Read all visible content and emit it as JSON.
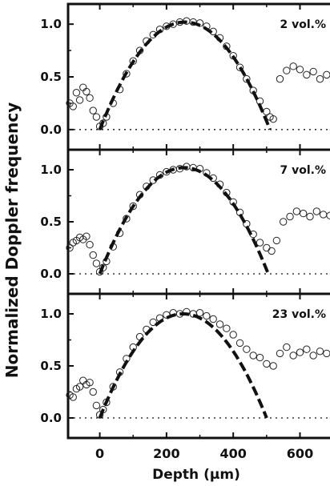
{
  "chart_data": {
    "type": "scatter",
    "xlabel": "Depth (μm)",
    "ylabel": "Normalized Doppler frequency",
    "xlim": [
      -95,
      690
    ],
    "x_ticks": [
      "0",
      "200",
      "400",
      "600"
    ],
    "x_tick_values": [
      0,
      200,
      400,
      600
    ],
    "ylim": [
      -0.1,
      1.1
    ],
    "y_ticks": [
      "0.0",
      "0.5",
      "1.0"
    ],
    "y_tick_values": [
      0.0,
      0.5,
      1.0
    ],
    "reference_line": {
      "y": 0.0,
      "style": "dotted"
    },
    "series_style": {
      "data": "open circles",
      "fit": "dashed line"
    },
    "panels": [
      {
        "label": "2 vol.%",
        "fit": {
          "x0": 0,
          "x1": 510,
          "peak": 1.02
        },
        "data": [
          [
            -90,
            0.25
          ],
          [
            -80,
            0.22
          ],
          [
            -70,
            0.35
          ],
          [
            -60,
            0.28
          ],
          [
            -50,
            0.4
          ],
          [
            -40,
            0.36
          ],
          [
            -30,
            0.3
          ],
          [
            -20,
            0.18
          ],
          [
            -10,
            0.12
          ],
          [
            0,
            0.03
          ],
          [
            10,
            0.06
          ],
          [
            20,
            0.12
          ],
          [
            40,
            0.25
          ],
          [
            60,
            0.38
          ],
          [
            80,
            0.53
          ],
          [
            100,
            0.65
          ],
          [
            120,
            0.75
          ],
          [
            140,
            0.84
          ],
          [
            160,
            0.9
          ],
          [
            180,
            0.95
          ],
          [
            200,
            0.98
          ],
          [
            220,
            1.0
          ],
          [
            240,
            1.02
          ],
          [
            260,
            1.03
          ],
          [
            280,
            1.02
          ],
          [
            300,
            1.01
          ],
          [
            320,
            0.98
          ],
          [
            340,
            0.93
          ],
          [
            360,
            0.87
          ],
          [
            380,
            0.79
          ],
          [
            400,
            0.7
          ],
          [
            420,
            0.59
          ],
          [
            440,
            0.48
          ],
          [
            460,
            0.37
          ],
          [
            480,
            0.27
          ],
          [
            500,
            0.17
          ],
          [
            510,
            0.12
          ],
          [
            520,
            0.1
          ],
          [
            540,
            0.48
          ],
          [
            560,
            0.56
          ],
          [
            580,
            0.6
          ],
          [
            600,
            0.57
          ],
          [
            620,
            0.52
          ],
          [
            640,
            0.55
          ],
          [
            660,
            0.48
          ],
          [
            680,
            0.52
          ]
        ]
      },
      {
        "label": "7 vol.%",
        "fit": {
          "x0": 0,
          "x1": 505,
          "peak": 1.02
        },
        "data": [
          [
            -90,
            0.25
          ],
          [
            -80,
            0.3
          ],
          [
            -70,
            0.32
          ],
          [
            -60,
            0.35
          ],
          [
            -50,
            0.33
          ],
          [
            -40,
            0.36
          ],
          [
            -30,
            0.28
          ],
          [
            -20,
            0.18
          ],
          [
            -10,
            0.1
          ],
          [
            0,
            0.02
          ],
          [
            10,
            0.06
          ],
          [
            20,
            0.12
          ],
          [
            40,
            0.26
          ],
          [
            60,
            0.39
          ],
          [
            80,
            0.53
          ],
          [
            100,
            0.65
          ],
          [
            120,
            0.76
          ],
          [
            140,
            0.84
          ],
          [
            160,
            0.9
          ],
          [
            180,
            0.95
          ],
          [
            200,
            0.98
          ],
          [
            220,
            1.0
          ],
          [
            240,
            1.01
          ],
          [
            260,
            1.03
          ],
          [
            280,
            1.02
          ],
          [
            300,
            1.01
          ],
          [
            320,
            0.97
          ],
          [
            340,
            0.92
          ],
          [
            360,
            0.86
          ],
          [
            380,
            0.78
          ],
          [
            400,
            0.69
          ],
          [
            420,
            0.59
          ],
          [
            440,
            0.48
          ],
          [
            460,
            0.38
          ],
          [
            480,
            0.3
          ],
          [
            500,
            0.25
          ],
          [
            515,
            0.22
          ],
          [
            530,
            0.32
          ],
          [
            550,
            0.5
          ],
          [
            570,
            0.55
          ],
          [
            590,
            0.6
          ],
          [
            610,
            0.58
          ],
          [
            630,
            0.55
          ],
          [
            650,
            0.6
          ],
          [
            670,
            0.57
          ],
          [
            690,
            0.56
          ]
        ]
      },
      {
        "label": "23 vol.%",
        "fit": {
          "x0": 0,
          "x1": 500,
          "peak": 1.0
        },
        "data": [
          [
            -90,
            0.22
          ],
          [
            -80,
            0.2
          ],
          [
            -70,
            0.28
          ],
          [
            -60,
            0.3
          ],
          [
            -50,
            0.36
          ],
          [
            -40,
            0.32
          ],
          [
            -30,
            0.34
          ],
          [
            -20,
            0.25
          ],
          [
            -10,
            0.12
          ],
          [
            0,
            0.03
          ],
          [
            10,
            0.08
          ],
          [
            20,
            0.15
          ],
          [
            40,
            0.3
          ],
          [
            60,
            0.44
          ],
          [
            80,
            0.57
          ],
          [
            100,
            0.68
          ],
          [
            120,
            0.78
          ],
          [
            140,
            0.85
          ],
          [
            160,
            0.92
          ],
          [
            180,
            0.96
          ],
          [
            200,
            0.99
          ],
          [
            220,
            1.01
          ],
          [
            240,
            1.0
          ],
          [
            260,
            1.02
          ],
          [
            280,
            1.0
          ],
          [
            300,
            1.01
          ],
          [
            320,
            0.98
          ],
          [
            340,
            0.95
          ],
          [
            360,
            0.9
          ],
          [
            380,
            0.86
          ],
          [
            400,
            0.8
          ],
          [
            420,
            0.72
          ],
          [
            440,
            0.66
          ],
          [
            460,
            0.6
          ],
          [
            480,
            0.58
          ],
          [
            500,
            0.52
          ],
          [
            520,
            0.5
          ],
          [
            540,
            0.62
          ],
          [
            560,
            0.68
          ],
          [
            580,
            0.6
          ],
          [
            600,
            0.63
          ],
          [
            620,
            0.66
          ],
          [
            640,
            0.6
          ],
          [
            660,
            0.64
          ],
          [
            680,
            0.62
          ]
        ]
      }
    ]
  }
}
